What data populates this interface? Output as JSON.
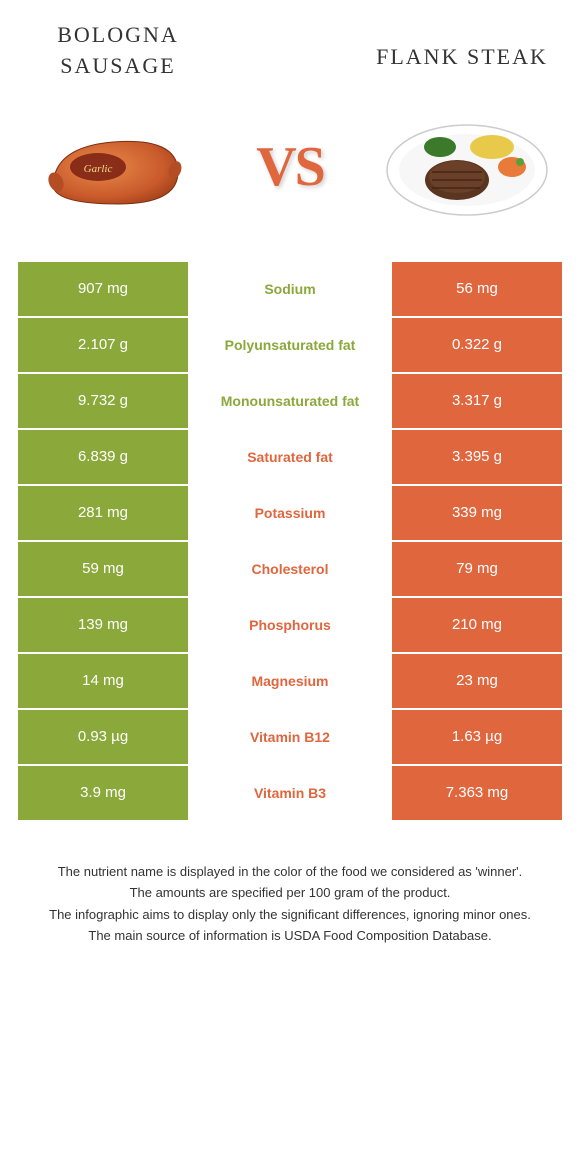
{
  "colors": {
    "green": "#8ba83a",
    "orange": "#e0663e",
    "text": "#333333",
    "white": "#ffffff"
  },
  "header": {
    "left_title": "BOLOGNA SAUSAGE",
    "right_title": "FLANK STEAK",
    "vs_label": "VS"
  },
  "images": {
    "left_alt": "bologna-sausage",
    "right_alt": "flank-steak-plate"
  },
  "nutrients": [
    {
      "label": "Sodium",
      "left": "907 mg",
      "right": "56 mg",
      "winner": "green"
    },
    {
      "label": "Polyunsaturated fat",
      "left": "2.107 g",
      "right": "0.322 g",
      "winner": "green"
    },
    {
      "label": "Monounsaturated fat",
      "left": "9.732 g",
      "right": "3.317 g",
      "winner": "green"
    },
    {
      "label": "Saturated fat",
      "left": "6.839 g",
      "right": "3.395 g",
      "winner": "orange"
    },
    {
      "label": "Potassium",
      "left": "281 mg",
      "right": "339 mg",
      "winner": "orange"
    },
    {
      "label": "Cholesterol",
      "left": "59 mg",
      "right": "79 mg",
      "winner": "orange"
    },
    {
      "label": "Phosphorus",
      "left": "139 mg",
      "right": "210 mg",
      "winner": "orange"
    },
    {
      "label": "Magnesium",
      "left": "14 mg",
      "right": "23 mg",
      "winner": "orange"
    },
    {
      "label": "Vitamin B12",
      "left": "0.93 µg",
      "right": "1.63 µg",
      "winner": "orange"
    },
    {
      "label": "Vitamin B3",
      "left": "3.9 mg",
      "right": "7.363 mg",
      "winner": "orange"
    }
  ],
  "footnotes": [
    "The nutrient name is displayed in the color of the food we considered as 'winner'.",
    "The amounts are specified per 100 gram of the product.",
    "The infographic aims to display only the significant differences, ignoring minor ones.",
    "The main source of information is USDA Food Composition Database."
  ]
}
